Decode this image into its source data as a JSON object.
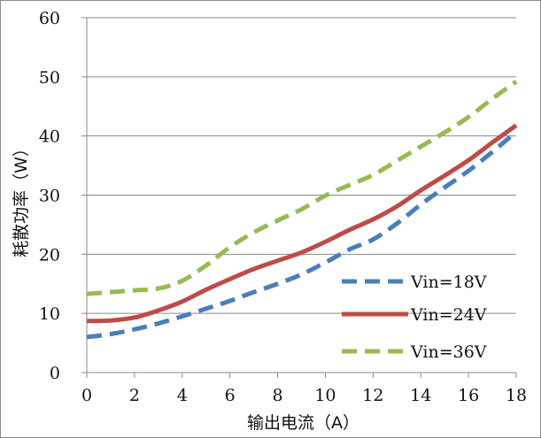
{
  "chart_data": {
    "type": "line",
    "xlabel": "输出电流（A）",
    "ylabel": "耗散功率（W）",
    "x_ticks": [
      "0",
      "2",
      "4",
      "6",
      "8",
      "10",
      "12",
      "14",
      "16",
      "18"
    ],
    "y_ticks": [
      "0",
      "10",
      "20",
      "30",
      "40",
      "50",
      "60"
    ],
    "xlim": [
      0,
      18
    ],
    "ylim": [
      0,
      60
    ],
    "grid": "horizontal",
    "legend_position": "bottom-right",
    "series": [
      {
        "name": "Vin=18V",
        "color": "#4A7EBB",
        "dash": "dashed",
        "x": [
          0,
          1,
          2,
          3,
          4,
          5,
          6,
          7,
          8,
          9,
          10,
          11,
          12,
          13,
          14,
          15,
          16,
          17,
          18
        ],
        "y": [
          6,
          6.5,
          7.3,
          8.3,
          9.5,
          10.8,
          12.1,
          13.6,
          15,
          16.6,
          18.6,
          20.8,
          22.5,
          25.2,
          28.4,
          31.3,
          34.1,
          37.3,
          40.7
        ]
      },
      {
        "name": "Vin=24V",
        "color": "#BE4B48",
        "dash": "solid",
        "x": [
          0,
          1,
          2,
          3,
          4,
          5,
          6,
          7,
          8,
          9,
          10,
          11,
          12,
          13,
          14,
          15,
          16,
          17,
          18
        ],
        "y": [
          8.7,
          8.8,
          9.3,
          10.5,
          12,
          14,
          15.8,
          17.5,
          18.9,
          20.3,
          22.1,
          24.1,
          25.9,
          28.1,
          30.8,
          33.3,
          35.9,
          38.9,
          41.8
        ]
      },
      {
        "name": "Vin=36V",
        "color": "#98B954",
        "dash": "dashed",
        "x": [
          0,
          1,
          2,
          3,
          4,
          5,
          6,
          7,
          8,
          9,
          10,
          11,
          12,
          13,
          14,
          15,
          16,
          17,
          18
        ],
        "y": [
          13.3,
          13.6,
          13.9,
          14.2,
          15.5,
          18.1,
          21.2,
          23.7,
          25.7,
          27.6,
          29.9,
          31.7,
          33.4,
          35.8,
          38.2,
          40.6,
          43.2,
          46.3,
          49.2
        ]
      }
    ]
  }
}
